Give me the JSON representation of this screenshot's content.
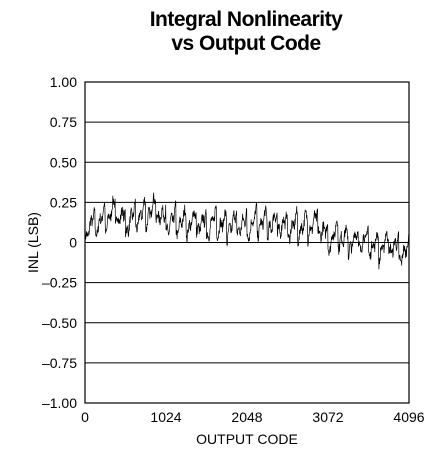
{
  "chart_data": {
    "type": "line",
    "title_lines": [
      "Integral Nonlinearity",
      "vs Output Code"
    ],
    "xlabel": "OUTPUT CODE",
    "ylabel": "INL (LSB)",
    "xlim": [
      0,
      4096
    ],
    "ylim": [
      -1.0,
      1.0
    ],
    "x_ticks": [
      0,
      1024,
      2048,
      3072,
      4096
    ],
    "x_tick_labels": [
      "0",
      "1024",
      "2048",
      "3072",
      "4096"
    ],
    "y_ticks": [
      1.0,
      0.75,
      0.5,
      0.25,
      0,
      -0.25,
      -0.5,
      -0.75,
      -1.0
    ],
    "y_tick_labels": [
      "1.00",
      "0.75",
      "0.50",
      "0.25",
      "0",
      "–0.25",
      "–0.50",
      "–0.75",
      "–1.00"
    ],
    "grid": "horizontal",
    "series": [
      {
        "x": [
          0,
          128,
          256,
          384,
          512,
          640,
          768,
          896,
          1024,
          1152,
          1280,
          1408,
          1536,
          1664,
          1792,
          1920,
          2048,
          2176,
          2304,
          2432,
          2560,
          2688,
          2816,
          2944,
          3072,
          3200,
          3328,
          3456,
          3584,
          3712,
          3840,
          3968,
          4096
        ],
        "values": [
          0.08,
          0.12,
          0.15,
          0.2,
          0.12,
          0.16,
          0.18,
          0.22,
          0.12,
          0.13,
          0.12,
          0.13,
          0.1,
          0.13,
          0.1,
          0.12,
          0.1,
          0.13,
          0.12,
          0.12,
          0.1,
          0.1,
          0.11,
          0.12,
          0.02,
          0.06,
          0.0,
          0.02,
          0.0,
          -0.03,
          0.0,
          -0.05,
          -0.08
        ]
      }
    ]
  }
}
